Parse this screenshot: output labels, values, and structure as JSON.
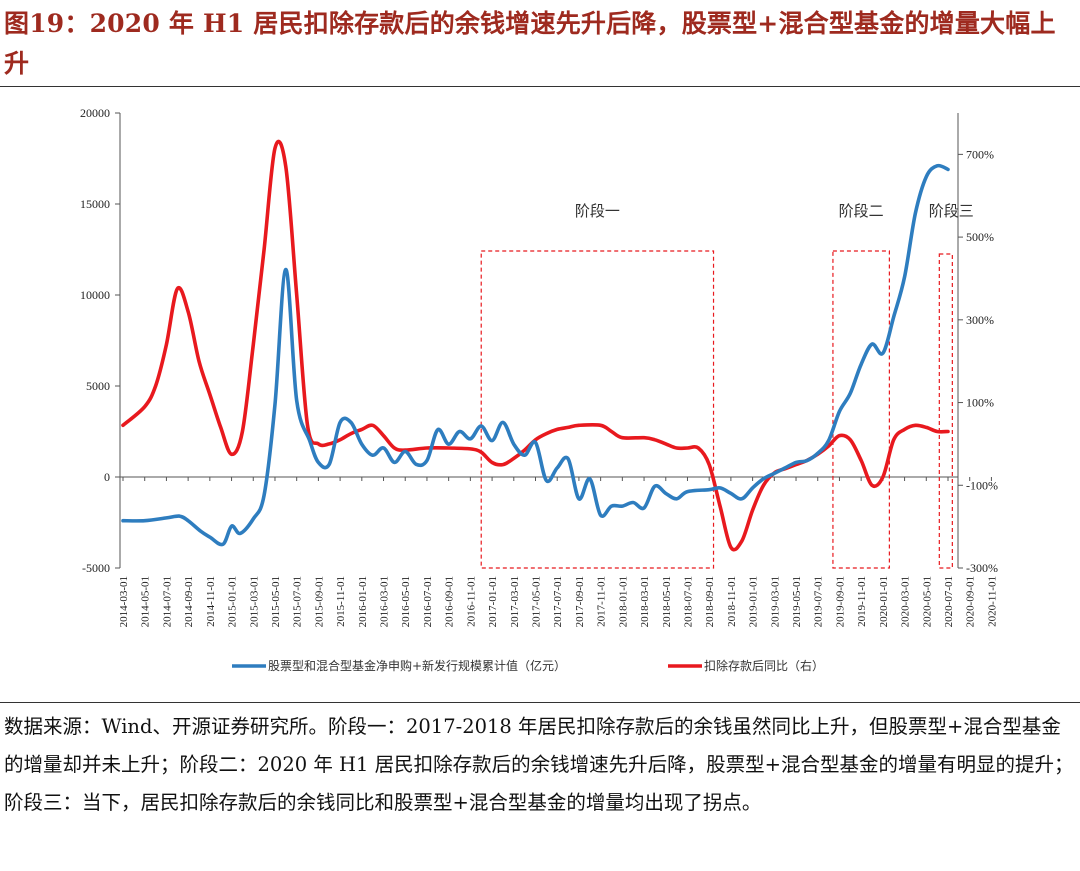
{
  "figure": {
    "title": "图19：2020 年 H1 居民扣除存款后的余钱增速先升后降，股票型+混合型基金的增量大幅上升",
    "notes": "数据来源：Wind、开源证券研究所。阶段一：2017-2018 年居民扣除存款后的余钱虽然同比上升，但股票型+混合型基金的增量却并未上升；阶段二：2020 年 H1 居民扣除存款后的余钱增速先升后降，股票型+混合型基金的增量有明显的提升；阶段三：当下，居民扣除存款后的余钱同比和股票型+混合型基金的增量均出现了拐点。"
  },
  "chart_data": {
    "type": "line",
    "x_ticks": [
      "2014-03-01",
      "2014-05-01",
      "2014-07-01",
      "2014-09-01",
      "2014-11-01",
      "2015-01-01",
      "2015-03-01",
      "2015-05-01",
      "2015-07-01",
      "2015-09-01",
      "2015-11-01",
      "2016-01-01",
      "2016-03-01",
      "2016-05-01",
      "2016-07-01",
      "2016-09-01",
      "2016-11-01",
      "2017-01-01",
      "2017-03-01",
      "2017-05-01",
      "2017-07-01",
      "2017-09-01",
      "2017-11-01",
      "2018-01-01",
      "2018-03-01",
      "2018-05-01",
      "2018-07-01",
      "2018-09-01",
      "2018-11-01",
      "2019-01-01",
      "2019-03-01",
      "2019-05-01",
      "2019-07-01",
      "2019-09-01",
      "2019-11-01",
      "2020-01-01",
      "2020-03-01",
      "2020-05-01",
      "2020-07-01",
      "2020-09-01",
      "2020-11-01"
    ],
    "y_left": {
      "min": -5000,
      "max": 20000,
      "ticks": [
        "-5000",
        "0",
        "5000",
        "10000",
        "15000",
        "20000"
      ]
    },
    "y_right": {
      "min": -300,
      "max": 800,
      "ticks": [
        "-300%",
        "-100%",
        "100%",
        "300%",
        "500%",
        "700%"
      ]
    },
    "series": [
      {
        "name": "股票型和混合型基金净申购+新发行规模累计值（亿元）",
        "axis": "left",
        "color": "#2e7dbf",
        "points": [
          [
            0,
            -2400
          ],
          [
            1,
            -2400
          ],
          [
            2,
            -2250
          ],
          [
            2.6,
            -2150
          ],
          [
            3,
            -2400
          ],
          [
            3.6,
            -3000
          ],
          [
            4,
            -3300
          ],
          [
            4.6,
            -3700
          ],
          [
            5,
            -2700
          ],
          [
            5.4,
            -3100
          ],
          [
            6,
            -2300
          ],
          [
            6.5,
            -1000
          ],
          [
            7,
            4000
          ],
          [
            7.5,
            11400
          ],
          [
            8,
            4200
          ],
          [
            8.6,
            2000
          ],
          [
            9,
            800
          ],
          [
            9.5,
            700
          ],
          [
            10,
            3000
          ],
          [
            10.5,
            3000
          ],
          [
            11,
            1800
          ],
          [
            11.5,
            1200
          ],
          [
            12,
            1600
          ],
          [
            12.5,
            800
          ],
          [
            13,
            1400
          ],
          [
            13.5,
            700
          ],
          [
            14,
            900
          ],
          [
            14.5,
            2600
          ],
          [
            15,
            1800
          ],
          [
            15.5,
            2500
          ],
          [
            16,
            2100
          ],
          [
            16.5,
            2800
          ],
          [
            17,
            2000
          ],
          [
            17.5,
            3000
          ],
          [
            18,
            1800
          ],
          [
            18.5,
            1200
          ],
          [
            19,
            1900
          ],
          [
            19.5,
            -200
          ],
          [
            20,
            500
          ],
          [
            20.5,
            1000
          ],
          [
            21,
            -1200
          ],
          [
            21.5,
            -100
          ],
          [
            22,
            -2100
          ],
          [
            22.5,
            -1600
          ],
          [
            23,
            -1600
          ],
          [
            23.5,
            -1400
          ],
          [
            24,
            -1700
          ],
          [
            24.5,
            -500
          ],
          [
            25,
            -900
          ],
          [
            25.5,
            -1200
          ],
          [
            26,
            -800
          ],
          [
            27,
            -700
          ],
          [
            27.5,
            -600
          ],
          [
            28,
            -900
          ],
          [
            28.5,
            -1200
          ],
          [
            29,
            -600
          ],
          [
            29.5,
            -100
          ],
          [
            30,
            200
          ],
          [
            30.5,
            500
          ],
          [
            31,
            800
          ],
          [
            31.5,
            900
          ],
          [
            32,
            1300
          ],
          [
            32.5,
            2000
          ],
          [
            33,
            3600
          ],
          [
            33.5,
            4600
          ],
          [
            34,
            6200
          ],
          [
            34.5,
            7300
          ],
          [
            35,
            6800
          ],
          [
            35.5,
            8800
          ],
          [
            36,
            11000
          ],
          [
            36.5,
            14500
          ],
          [
            37,
            16500
          ],
          [
            37.5,
            17100
          ],
          [
            38,
            16900
          ]
        ]
      },
      {
        "name": "扣除存款后同比（右）",
        "axis": "right",
        "color": "#e8191e",
        "points": [
          [
            0,
            45
          ],
          [
            1,
            90
          ],
          [
            1.5,
            140
          ],
          [
            2,
            240
          ],
          [
            2.5,
            375
          ],
          [
            3,
            320
          ],
          [
            3.5,
            200
          ],
          [
            4,
            120
          ],
          [
            4.5,
            40
          ],
          [
            5,
            -25
          ],
          [
            5.5,
            30
          ],
          [
            6,
            240
          ],
          [
            6.5,
            470
          ],
          [
            7,
            715
          ],
          [
            7.5,
            670
          ],
          [
            8,
            360
          ],
          [
            8.5,
            45
          ],
          [
            9,
            0
          ],
          [
            9.5,
            0
          ],
          [
            10,
            10
          ],
          [
            10.5,
            25
          ],
          [
            11,
            35
          ],
          [
            11.5,
            45
          ],
          [
            12,
            20
          ],
          [
            12.5,
            -10
          ],
          [
            13,
            -15
          ],
          [
            14,
            -10
          ],
          [
            15,
            -10
          ],
          [
            16,
            -12
          ],
          [
            16.5,
            -20
          ],
          [
            17,
            -45
          ],
          [
            17.5,
            -50
          ],
          [
            18,
            -35
          ],
          [
            18.5,
            -15
          ],
          [
            19,
            10
          ],
          [
            19.5,
            25
          ],
          [
            20,
            35
          ],
          [
            20.5,
            40
          ],
          [
            21,
            45
          ],
          [
            22,
            45
          ],
          [
            22.5,
            30
          ],
          [
            23,
            15
          ],
          [
            24,
            15
          ],
          [
            24.5,
            10
          ],
          [
            25,
            0
          ],
          [
            25.5,
            -10
          ],
          [
            26,
            -10
          ],
          [
            26.5,
            -10
          ],
          [
            27,
            -50
          ],
          [
            27.5,
            -150
          ],
          [
            28,
            -250
          ],
          [
            28.5,
            -235
          ],
          [
            29,
            -160
          ],
          [
            29.5,
            -100
          ],
          [
            30,
            -70
          ],
          [
            30.5,
            -60
          ],
          [
            31,
            -50
          ],
          [
            31.5,
            -40
          ],
          [
            32,
            -25
          ],
          [
            32.5,
            -5
          ],
          [
            33,
            20
          ],
          [
            33.5,
            10
          ],
          [
            34,
            -40
          ],
          [
            34.5,
            -100
          ],
          [
            35,
            -80
          ],
          [
            35.5,
            10
          ],
          [
            36,
            35
          ],
          [
            36.5,
            45
          ],
          [
            37,
            40
          ],
          [
            37.5,
            30
          ],
          [
            38,
            30
          ]
        ]
      }
    ],
    "annotations": [
      {
        "label": "阶段一",
        "x_from": 16.5,
        "x_to": 27.2
      },
      {
        "label": "阶段二",
        "x_from": 32.7,
        "x_to": 35.3
      },
      {
        "label": "阶段三",
        "x_from": 37.6,
        "x_to": 38.2
      }
    ]
  }
}
